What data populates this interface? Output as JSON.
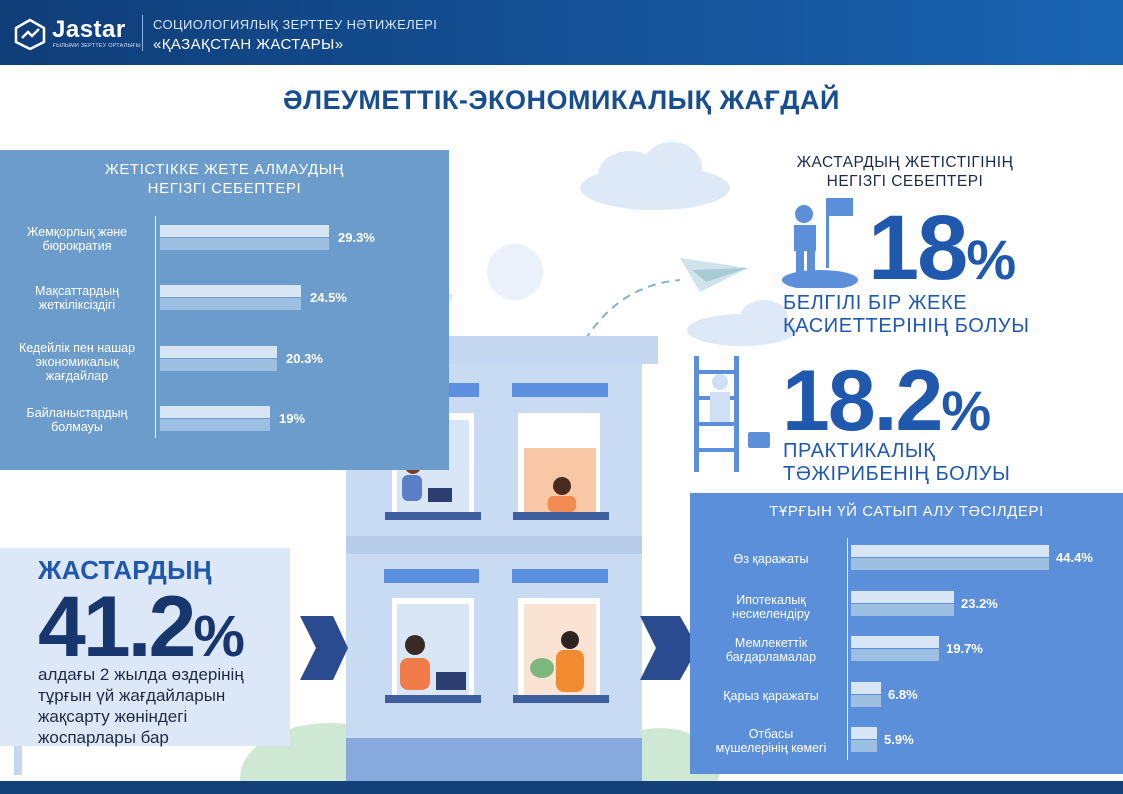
{
  "header": {
    "logo_text": "Jastar",
    "logo_sub": "ҒЫЛЫМИ ЗЕРТТЕУ ОРТАЛЫҒЫ",
    "line1": "СОЦИОЛОГИЯЛЫҚ ЗЕРТТЕУ НӘТИЖЕЛЕРІ",
    "line2": "«ҚАЗАҚСТАН ЖАСТАРЫ»"
  },
  "page_title": "ӘЛЕУМЕТТІК-ЭКОНОМИКАЛЫҚ ЖАҒДАЙ",
  "failure": {
    "title_line1": "ЖЕТІСТІККЕ ЖЕТЕ АЛМАУДЫҢ",
    "title_line2": "НЕГІЗГІ СЕБЕПТЕРІ",
    "items": [
      {
        "line1": "Жемқорлық және",
        "line2": "бюрократия",
        "line3": "",
        "value_label": "29.3%"
      },
      {
        "line1": "Мақсаттардың",
        "line2": "жеткіліксіздігі",
        "line3": "",
        "value_label": "24.5%"
      },
      {
        "line1": "Кедейлік пен нашар",
        "line2": "экономикалық",
        "line3": "жағдайлар",
        "value_label": "20.3%"
      },
      {
        "line1": "Байланыстардың",
        "line2": "болмауы",
        "line3": "",
        "value_label": "19%"
      }
    ]
  },
  "success": {
    "title_line1": "ЖАСТАРДЫҢ ЖЕТІСТІГІНІҢ",
    "title_line2": "НЕГІЗГІ СЕБЕПТЕРІ",
    "stat1": {
      "number": "18",
      "pct": "%",
      "line1": "БЕЛГІЛІ БІР ЖЕКЕ",
      "line2": "ҚАСИЕТТЕРІНІҢ БОЛУЫ"
    },
    "stat2": {
      "number": "18.2",
      "pct": "%",
      "line1": "ПРАКТИКАЛЫҚ",
      "line2": "ТӘЖІРИБЕНІҢ БОЛУЫ"
    }
  },
  "housing": {
    "title": "ТҰРҒЫН ҮЙ САТЫП АЛУ ТӘСІЛДЕРІ",
    "items": [
      {
        "line1": "Өз қаражаты",
        "line2": "",
        "value_label": "44.4%"
      },
      {
        "line1": "Ипотекалық",
        "line2": "несиелендіру",
        "value_label": "23.2%"
      },
      {
        "line1": "Мемлекеттік",
        "line2": "бағдарламалар",
        "value_label": "19.7%"
      },
      {
        "line1": "Қарыз қаражаты",
        "line2": "",
        "value_label": "6.8%"
      },
      {
        "line1": "Отбасы",
        "line2": "мүшелерінің көмегі",
        "value_label": "5.9%"
      }
    ]
  },
  "plans": {
    "heading": "ЖАСТАРДЫҢ",
    "number": "41.2",
    "pct": "%",
    "line1": "алдағы 2 жылда өздерінің",
    "line2": "тұрғын үй жағдайларын",
    "line3": "жақсарту жөніндегі",
    "line4": "жоспарлары бар"
  },
  "colors": {
    "header": "#14407a",
    "accent": "#2058ae",
    "left_panel": "#6c9ccb",
    "right_panel": "#5b8fda",
    "bar_light": "#d7e5f4",
    "bar_mid": "#9dbfe2"
  },
  "chart_data": [
    {
      "type": "bar",
      "orientation": "horizontal",
      "title": "ЖЕТІСТІККЕ ЖЕТЕ АЛМАУДЫҢ НЕГІЗГІ СЕБЕПТЕРІ",
      "categories": [
        "Жемқорлық және бюрократия",
        "Мақсаттардың жеткіліксіздігі",
        "Кедейлік пен нашар экономикалық жағдайлар",
        "Байланыстардың болмауы"
      ],
      "values": [
        29.3,
        24.5,
        20.3,
        19
      ],
      "unit": "%"
    },
    {
      "type": "bar",
      "orientation": "horizontal",
      "title": "ТҰРҒЫН ҮЙ САТЫП АЛУ ТӘСІЛДЕРІ",
      "categories": [
        "Өз қаражаты",
        "Ипотекалық несиелендіру",
        "Мемлекеттік бағдарламалар",
        "Қарыз қаражаты",
        "Отбасы мүшелерінің көмегі"
      ],
      "values": [
        44.4,
        23.2,
        19.7,
        6.8,
        5.9
      ],
      "unit": "%"
    },
    {
      "type": "table",
      "title": "ЖАСТАРДЫҢ ЖЕТІСТІГІНІҢ НЕГІЗГІ СЕБЕПТЕРІ",
      "categories": [
        "Белгілі бір жеке қасиеттерінің болуы",
        "Практикалық тәжірибенің болуы"
      ],
      "values": [
        18,
        18.2
      ],
      "unit": "%"
    }
  ]
}
